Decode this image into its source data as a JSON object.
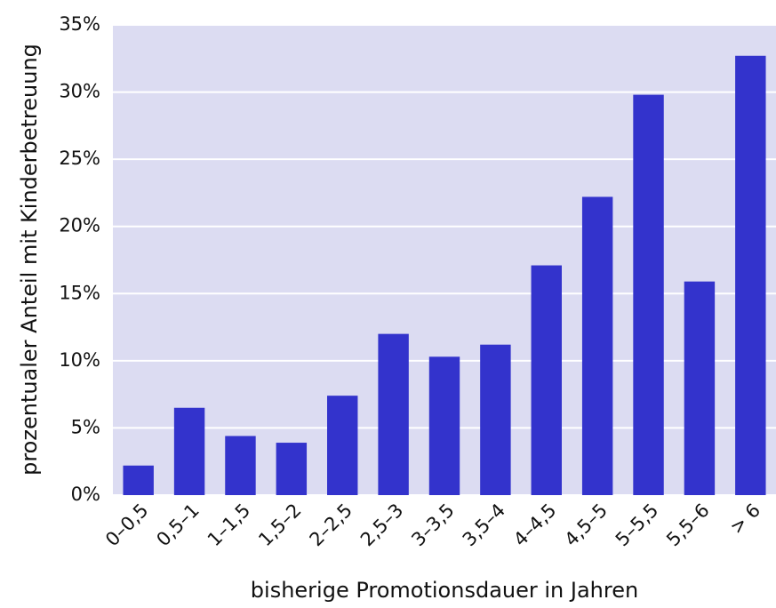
{
  "chart_data": {
    "type": "bar",
    "xlabel": "bisherige Promotionsdauer in Jahren",
    "ylabel": "prozentualer Anteil mit Kinderbetreuung",
    "categories": [
      "0–0,5",
      "0,5–1",
      "1–1,5",
      "1,5–2",
      "2–2,5",
      "2,5–3",
      "3–3,5",
      "3,5–4",
      "4–4,5",
      "4,5–5",
      "5–5,5",
      "5,5–6",
      "> 6"
    ],
    "values": [
      2.2,
      6.5,
      4.4,
      3.9,
      7.4,
      12.0,
      10.3,
      11.2,
      17.1,
      22.2,
      29.8,
      15.9,
      32.7
    ],
    "color": "#3333cc",
    "ylim": [
      0,
      35
    ],
    "yticks": [
      {
        "value": 0,
        "label": "0%"
      },
      {
        "value": 5,
        "label": "5%"
      },
      {
        "value": 10,
        "label": "10%"
      },
      {
        "value": 15,
        "label": "15%"
      },
      {
        "value": 20,
        "label": "20%"
      },
      {
        "value": 25,
        "label": "25%"
      },
      {
        "value": 30,
        "label": "30%"
      },
      {
        "value": 35,
        "label": "35%"
      }
    ],
    "grid": true
  }
}
